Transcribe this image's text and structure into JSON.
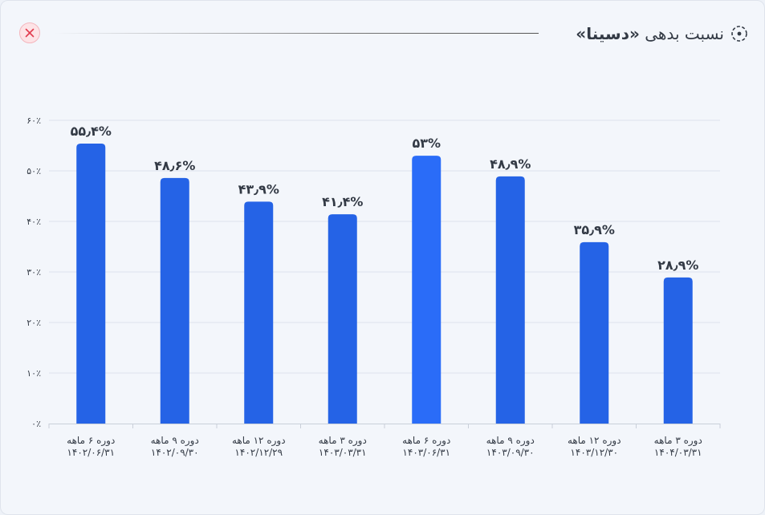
{
  "header": {
    "title_prefix": "نسبت بدهی",
    "title_name": "«دسینا»",
    "close_icon": "close-icon",
    "title_icon": "target-icon"
  },
  "colors": {
    "bar": "#2563e6",
    "bar_highlight": "#2a6cf8",
    "grid": "#dde3ec",
    "axis": "#c9cfd9",
    "text": "#333a45"
  },
  "chart_data": {
    "type": "bar",
    "title": "نسبت بدهی «دسینا»",
    "ylim": [
      0,
      60
    ],
    "y_ticks": [
      0,
      10,
      20,
      30,
      40,
      50,
      60
    ],
    "y_tick_labels": [
      "۰٪",
      "۱۰٪",
      "۲۰٪",
      "۳۰٪",
      "۴۰٪",
      "۵۰٪",
      "۶۰٪"
    ],
    "grid": true,
    "categories": [
      {
        "line1": "دوره ۶ ماهه",
        "line2": "۱۴۰۲/۰۶/۳۱"
      },
      {
        "line1": "دوره ۹ ماهه",
        "line2": "۱۴۰۲/۰۹/۳۰"
      },
      {
        "line1": "دوره ۱۲ ماهه",
        "line2": "۱۴۰۲/۱۲/۲۹"
      },
      {
        "line1": "دوره ۳ ماهه",
        "line2": "۱۴۰۳/۰۳/۳۱"
      },
      {
        "line1": "دوره ۶ ماهه",
        "line2": "۱۴۰۳/۰۶/۳۱"
      },
      {
        "line1": "دوره ۹ ماهه",
        "line2": "۱۴۰۳/۰۹/۳۰"
      },
      {
        "line1": "دوره ۱۲ ماهه",
        "line2": "۱۴۰۳/۱۲/۳۰"
      },
      {
        "line1": "دوره ۳ ماهه",
        "line2": "۱۴۰۴/۰۳/۳۱"
      }
    ],
    "values": [
      55.4,
      48.6,
      43.9,
      41.4,
      53,
      48.9,
      35.9,
      28.9
    ],
    "value_labels": [
      "۵۵٫۴%",
      "۴۸٫۶%",
      "۴۳٫۹%",
      "۴۱٫۴%",
      "۵۳%",
      "۴۸٫۹%",
      "۳۵٫۹%",
      "۲۸٫۹%"
    ],
    "highlight_index": 4
  }
}
